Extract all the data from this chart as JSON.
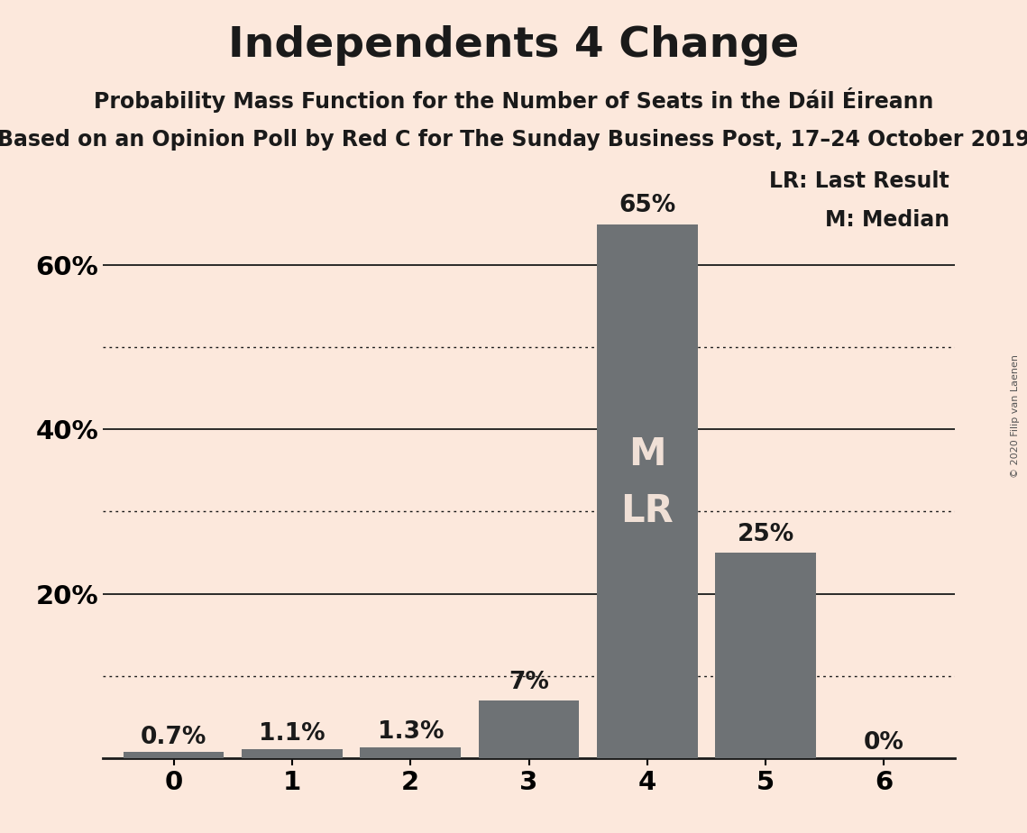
{
  "title": "Independents 4 Change",
  "subtitle1": "Probability Mass Function for the Number of Seats in the Dáil Éireann",
  "subtitle2": "Based on an Opinion Poll by Red C for The Sunday Business Post, 17–24 October 2019",
  "copyright": "© 2020 Filip van Laenen",
  "categories": [
    0,
    1,
    2,
    3,
    4,
    5,
    6
  ],
  "values": [
    0.007,
    0.011,
    0.013,
    0.07,
    0.65,
    0.25,
    0.0
  ],
  "labels": [
    "0.7%",
    "1.1%",
    "1.3%",
    "7%",
    "65%",
    "25%",
    "0%"
  ],
  "bar_color": "#6e7275",
  "background_color": "#fce8dc",
  "median_bar": 4,
  "last_result_bar": 4,
  "median_label": "M",
  "last_result_label": "LR",
  "bar_label_color_inside": "#f0e0d6",
  "bar_label_color_outside": "#1a1a1a",
  "grid_color": "#1a1a1a",
  "axis_color": "#1a1a1a",
  "title_fontsize": 34,
  "subtitle1_fontsize": 17,
  "subtitle2_fontsize": 17,
  "label_fontsize": 19,
  "tick_fontsize": 21,
  "ml_fontsize": 30,
  "ylim": [
    0,
    0.72
  ],
  "legend_text1": "LR: Last Result",
  "legend_text2": "M: Median",
  "legend_fontsize": 17,
  "dotted_grid_values": [
    0.1,
    0.3,
    0.5
  ],
  "solid_grid_values": [
    0.2,
    0.4,
    0.6
  ],
  "ytick_positions": [
    0.2,
    0.4,
    0.6
  ],
  "ytick_labels": [
    "20%",
    "40%",
    "60%"
  ]
}
